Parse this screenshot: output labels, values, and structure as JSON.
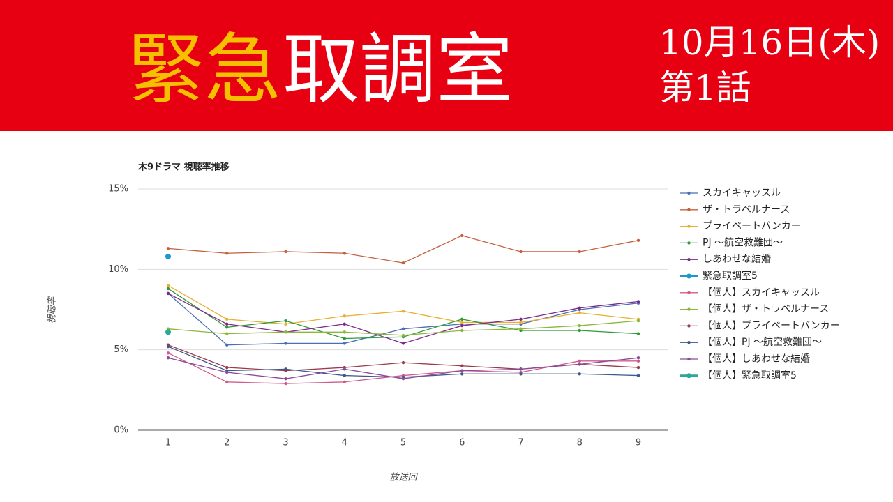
{
  "header": {
    "title_gold": "緊急",
    "title_white": "取調室",
    "date": "10月16日(木)",
    "episode": "第1話"
  },
  "chart_data": {
    "type": "line",
    "title": "木9ドラマ 視聴率推移",
    "ylabel": "視聴率",
    "xlabel": "放送回",
    "categories": [
      "1",
      "2",
      "3",
      "4",
      "5",
      "6",
      "7",
      "8",
      "9"
    ],
    "ylim": [
      0,
      15
    ],
    "yticks": [
      {
        "value": 0,
        "label": "0%"
      },
      {
        "value": 5,
        "label": "5%"
      },
      {
        "value": 10,
        "label": "10%"
      },
      {
        "value": 15,
        "label": "15%"
      }
    ],
    "grid": true,
    "legend": "right",
    "series": [
      {
        "name": "スカイキャッスル",
        "color": "#4a6fb5",
        "values": [
          8.5,
          5.3,
          5.4,
          5.4,
          6.3,
          6.6,
          6.6,
          7.5,
          7.9
        ]
      },
      {
        "name": "ザ・トラベルナース",
        "color": "#c4603e",
        "values": [
          11.3,
          11.0,
          11.1,
          11.0,
          10.4,
          12.1,
          11.1,
          11.1,
          11.8
        ]
      },
      {
        "name": "プライベートバンカー",
        "color": "#e8b030",
        "values": [
          9.0,
          6.9,
          6.6,
          7.1,
          7.4,
          6.7,
          6.7,
          7.3,
          6.9
        ]
      },
      {
        "name": "PJ ～航空救難団～",
        "color": "#2e9a3a",
        "values": [
          8.8,
          6.4,
          6.8,
          5.7,
          5.8,
          6.9,
          6.2,
          6.2,
          6.0
        ]
      },
      {
        "name": "しあわせな結婚",
        "color": "#7b2a8a",
        "values": [
          8.5,
          6.6,
          6.1,
          6.6,
          5.4,
          6.5,
          6.9,
          7.6,
          8.0
        ]
      },
      {
        "name": "緊急取調室5",
        "color": "#1a9ac9",
        "values": [
          10.8,
          null,
          null,
          null,
          null,
          null,
          null,
          null,
          null
        ]
      },
      {
        "name": "【個人】スカイキャッスル",
        "color": "#d05c8e",
        "values": [
          4.8,
          3.0,
          2.9,
          3.0,
          3.4,
          3.7,
          3.6,
          4.3,
          4.3
        ]
      },
      {
        "name": "【個人】ザ・トラベルナース",
        "color": "#8cb83a",
        "values": [
          6.3,
          6.0,
          6.1,
          6.1,
          5.9,
          6.2,
          6.3,
          6.5,
          6.8
        ]
      },
      {
        "name": "【個人】プライベートバンカー",
        "color": "#9a3a4a",
        "values": [
          5.3,
          3.9,
          3.7,
          3.9,
          4.2,
          4.0,
          3.8,
          4.1,
          3.9
        ]
      },
      {
        "name": "【個人】PJ ～航空救難団～",
        "color": "#3a5a8a",
        "values": [
          5.2,
          3.7,
          3.8,
          3.4,
          3.3,
          3.5,
          3.5,
          3.5,
          3.4
        ]
      },
      {
        "name": "【個人】しあわせな結婚",
        "color": "#8a4a9a",
        "values": [
          4.5,
          3.6,
          3.2,
          3.8,
          3.2,
          3.7,
          3.8,
          4.1,
          4.5
        ]
      },
      {
        "name": "【個人】緊急取調室5",
        "color": "#2aa89a",
        "values": [
          6.1,
          null,
          null,
          null,
          null,
          null,
          null,
          null,
          null
        ]
      }
    ]
  }
}
